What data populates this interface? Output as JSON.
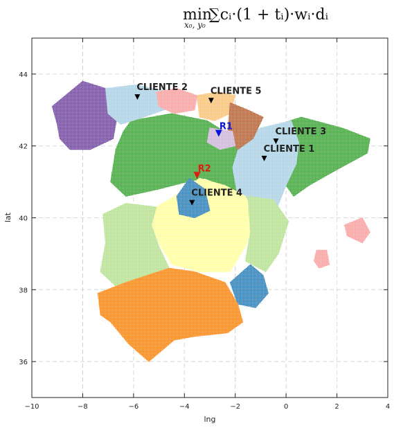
{
  "chart_data": {
    "type": "scatter",
    "title": {
      "op": "min",
      "sub": "x₀, y₀",
      "body": "∑cᵢ·(1 + tᵢ)·wᵢ·dᵢ"
    },
    "xlabel": "lng",
    "ylabel": "lat",
    "xlim": [
      -10,
      4
    ],
    "ylim": [
      35,
      45
    ],
    "xticks": [
      -10,
      -8,
      -6,
      -4,
      -2,
      0,
      2,
      4
    ],
    "yticks": [
      36,
      38,
      40,
      42,
      44
    ],
    "xtick_labels": [
      "−10",
      "−8",
      "−6",
      "−4",
      "−2",
      "0",
      "2",
      "4"
    ],
    "ytick_labels": [
      "36",
      "38",
      "40",
      "42",
      "44"
    ],
    "grid": true,
    "clients": [
      {
        "label": "CLIENTE 2",
        "lng": -5.85,
        "lat": 43.36,
        "marker_color": "#000000",
        "label_color": "#222222"
      },
      {
        "label": "CLIENTE 5",
        "lng": -2.95,
        "lat": 43.26,
        "marker_color": "#000000",
        "label_color": "#222222"
      },
      {
        "label": "CLIENTE 3",
        "lng": -0.4,
        "lat": 42.13,
        "marker_color": "#000000",
        "label_color": "#222222"
      },
      {
        "label": "CLIENTE 1",
        "lng": -0.86,
        "lat": 41.65,
        "marker_color": "#000000",
        "label_color": "#222222"
      },
      {
        "label": "CLIENTE 4",
        "lng": -3.7,
        "lat": 40.42,
        "marker_color": "#000000",
        "label_color": "#222222"
      }
    ],
    "solutions": [
      {
        "label": "R1",
        "lng": -2.65,
        "lat": 42.35,
        "color": "#0a14d6"
      },
      {
        "label": "R2",
        "lng": -3.5,
        "lat": 41.18,
        "color": "#e01c10"
      }
    ],
    "regions": [
      {
        "name": "green",
        "color": "#33a02c",
        "polys": [
          [
            [
              -6.1,
              42.7
            ],
            [
              -4.5,
              42.9
            ],
            [
              -3.1,
              42.7
            ],
            [
              -2.2,
              42.3
            ],
            [
              -1.4,
              42.0
            ],
            [
              -0.9,
              41.1
            ],
            [
              -1.5,
              40.6
            ],
            [
              -2.5,
              40.9
            ],
            [
              -3.2,
              41.1
            ],
            [
              -3.9,
              41.0
            ],
            [
              -5.0,
              40.8
            ],
            [
              -6.3,
              40.6
            ],
            [
              -6.9,
              41.0
            ],
            [
              -6.7,
              41.9
            ],
            [
              -6.4,
              42.4
            ]
          ],
          [
            [
              -0.3,
              42.6
            ],
            [
              0.6,
              42.8
            ],
            [
              2.2,
              42.5
            ],
            [
              3.3,
              42.2
            ],
            [
              3.2,
              41.8
            ],
            [
              1.9,
              41.3
            ],
            [
              0.9,
              40.9
            ],
            [
              0.3,
              40.6
            ],
            [
              0.0,
              40.9
            ],
            [
              -0.2,
              41.5
            ],
            [
              -0.4,
              42.0
            ]
          ]
        ]
      },
      {
        "name": "purple",
        "color": "#6a3d9a",
        "polys": [
          [
            [
              -9.2,
              43.1
            ],
            [
              -8.0,
              43.8
            ],
            [
              -7.1,
              43.6
            ],
            [
              -6.6,
              43.0
            ],
            [
              -6.8,
              42.2
            ],
            [
              -7.7,
              41.9
            ],
            [
              -8.5,
              41.9
            ],
            [
              -8.9,
              42.2
            ],
            [
              -9.0,
              42.6
            ]
          ]
        ]
      },
      {
        "name": "lightblue",
        "color": "#a6cee3",
        "polys": [
          [
            [
              -7.1,
              43.6
            ],
            [
              -5.9,
              43.7
            ],
            [
              -4.6,
              43.5
            ],
            [
              -4.4,
              43.1
            ],
            [
              -5.6,
              42.8
            ],
            [
              -6.5,
              42.6
            ],
            [
              -7.0,
              42.9
            ]
          ],
          [
            [
              -1.8,
              42.1
            ],
            [
              -1.0,
              42.5
            ],
            [
              0.2,
              42.7
            ],
            [
              0.5,
              42.1
            ],
            [
              0.4,
              41.5
            ],
            [
              0.0,
              40.9
            ],
            [
              -0.4,
              40.2
            ],
            [
              -1.2,
              40.3
            ],
            [
              -1.9,
              40.6
            ],
            [
              -2.1,
              41.4
            ]
          ]
        ]
      },
      {
        "name": "pink",
        "color": "#fb9a99",
        "polys": [
          [
            [
              -5.1,
              43.5
            ],
            [
              -4.3,
              43.6
            ],
            [
              -3.5,
              43.4
            ],
            [
              -3.6,
              43.0
            ],
            [
              -4.4,
              42.9
            ],
            [
              -5.0,
              43.1
            ]
          ],
          [
            [
              2.3,
              39.8
            ],
            [
              3.0,
              40.0
            ],
            [
              3.3,
              39.6
            ],
            [
              3.0,
              39.3
            ],
            [
              2.4,
              39.5
            ]
          ],
          [
            [
              1.2,
              39.1
            ],
            [
              1.6,
              39.1
            ],
            [
              1.7,
              38.7
            ],
            [
              1.3,
              38.6
            ],
            [
              1.1,
              38.8
            ]
          ]
        ]
      },
      {
        "name": "sand",
        "color": "#fdbf6f",
        "polys": [
          [
            [
              -3.5,
              43.4
            ],
            [
              -2.7,
              43.5
            ],
            [
              -2.0,
              43.4
            ],
            [
              -2.2,
              42.9
            ],
            [
              -2.8,
              42.7
            ],
            [
              -3.4,
              42.8
            ]
          ]
        ]
      },
      {
        "name": "brown",
        "color": "#b15928",
        "polys": [
          [
            [
              -2.2,
              43.2
            ],
            [
              -1.5,
              43.0
            ],
            [
              -0.9,
              42.8
            ],
            [
              -1.3,
              42.2
            ],
            [
              -1.9,
              41.9
            ],
            [
              -2.3,
              42.3
            ]
          ]
        ]
      },
      {
        "name": "lavender",
        "color": "#cab2d6",
        "polys": [
          [
            [
              -3.0,
              42.5
            ],
            [
              -2.1,
              42.4
            ],
            [
              -2.0,
              42.0
            ],
            [
              -2.6,
              41.9
            ],
            [
              -3.1,
              42.1
            ]
          ]
        ]
      },
      {
        "name": "yellow",
        "color": "#ffff99",
        "polys": [
          [
            [
              -5.1,
              40.3
            ],
            [
              -4.4,
              40.6
            ],
            [
              -3.4,
              41.1
            ],
            [
              -2.4,
              40.9
            ],
            [
              -1.6,
              40.6
            ],
            [
              -1.2,
              40.0
            ],
            [
              -1.6,
              39.2
            ],
            [
              -2.2,
              38.5
            ],
            [
              -3.4,
              38.5
            ],
            [
              -4.5,
              38.7
            ],
            [
              -5.0,
              39.3
            ],
            [
              -5.3,
              39.8
            ]
          ]
        ]
      },
      {
        "name": "teal",
        "color": "#1f78b4",
        "polys": [
          [
            [
              -4.3,
              40.6
            ],
            [
              -3.8,
              41.1
            ],
            [
              -3.2,
              40.8
            ],
            [
              -3.0,
              40.2
            ],
            [
              -3.6,
              40.0
            ],
            [
              -4.2,
              40.1
            ]
          ],
          [
            [
              -2.2,
              38.2
            ],
            [
              -1.4,
              38.7
            ],
            [
              -0.9,
              38.4
            ],
            [
              -0.7,
              37.9
            ],
            [
              -1.2,
              37.5
            ],
            [
              -1.9,
              37.6
            ]
          ]
        ]
      },
      {
        "name": "lightgreen",
        "color": "#b2df8a",
        "polys": [
          [
            [
              -7.2,
              40.1
            ],
            [
              -6.3,
              40.4
            ],
            [
              -5.1,
              40.3
            ],
            [
              -5.3,
              39.8
            ],
            [
              -5.0,
              39.2
            ],
            [
              -4.6,
              38.6
            ],
            [
              -5.7,
              38.2
            ],
            [
              -6.7,
              38.1
            ],
            [
              -7.3,
              38.5
            ],
            [
              -7.1,
              39.3
            ]
          ],
          [
            [
              -1.5,
              40.6
            ],
            [
              -0.5,
              40.5
            ],
            [
              0.1,
              39.9
            ],
            [
              -0.3,
              39.0
            ],
            [
              -0.8,
              38.5
            ],
            [
              -1.6,
              38.8
            ],
            [
              -1.4,
              39.6
            ]
          ]
        ]
      },
      {
        "name": "orange",
        "color": "#ff7f00",
        "polys": [
          [
            [
              -7.4,
              37.9
            ],
            [
              -6.3,
              38.2
            ],
            [
              -4.6,
              38.6
            ],
            [
              -3.6,
              38.5
            ],
            [
              -2.4,
              38.2
            ],
            [
              -1.9,
              37.6
            ],
            [
              -1.7,
              37.1
            ],
            [
              -2.3,
              36.8
            ],
            [
              -3.6,
              36.7
            ],
            [
              -4.4,
              36.6
            ],
            [
              -5.4,
              36.0
            ],
            [
              -6.2,
              36.5
            ],
            [
              -6.9,
              37.1
            ],
            [
              -7.3,
              37.3
            ]
          ]
        ]
      }
    ]
  }
}
